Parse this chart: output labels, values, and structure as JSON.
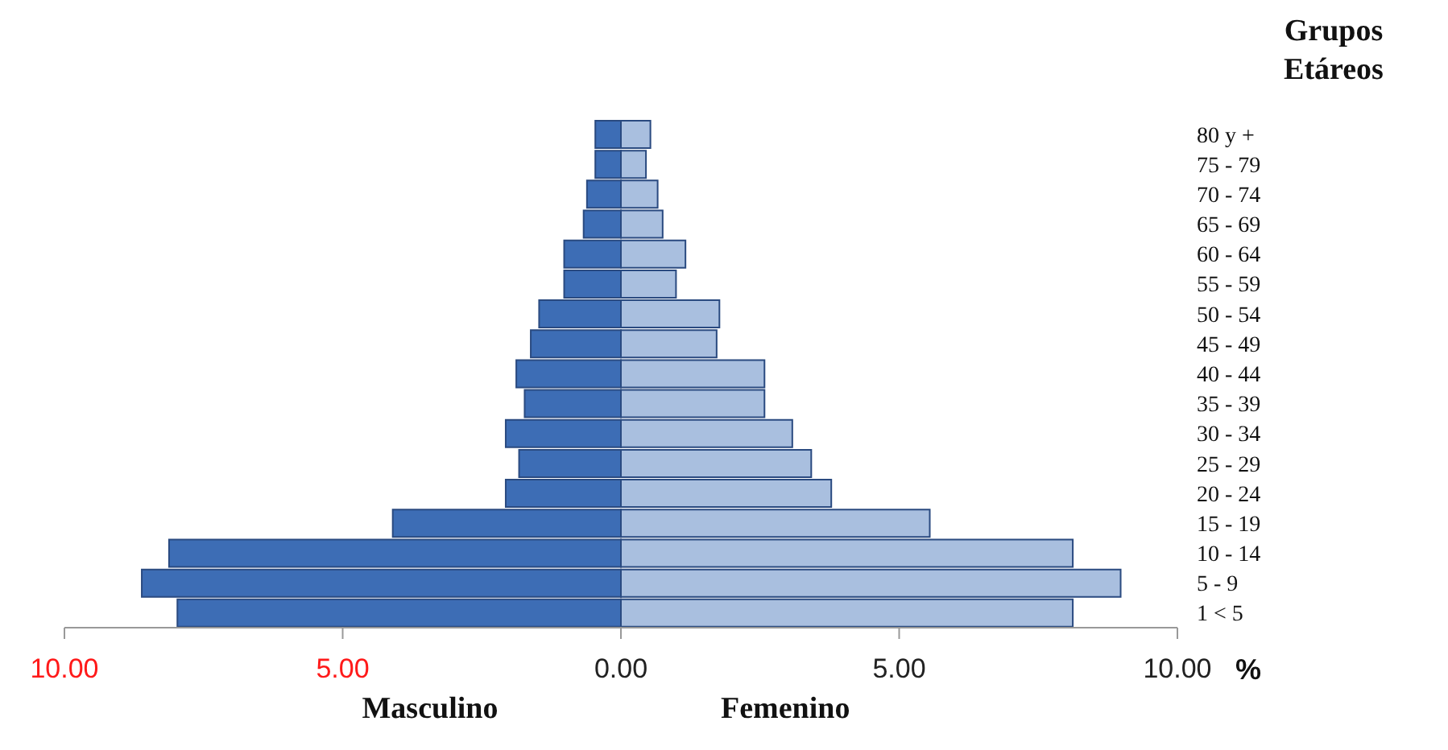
{
  "chart_data": {
    "type": "bar",
    "orientation": "horizontal",
    "stacked": true,
    "ylabel": "Grupos Etáreos",
    "xlabel": "%",
    "categories": [
      "80 y +",
      "75 - 79",
      "70 - 74",
      "65 - 69",
      "60 - 64",
      "55 - 59",
      "50 - 54",
      "45 - 49",
      "40 - 44",
      "35 - 39",
      "30 - 34",
      "25 - 29",
      "20 - 24",
      "15 - 19",
      "10 - 14",
      "5 - 9",
      "1 < 5"
    ],
    "series": [
      {
        "name": "Masculino",
        "color": "#3d6db5",
        "values": [
          -0.46,
          -0.46,
          -0.61,
          -0.67,
          -1.02,
          -1.02,
          -1.47,
          -1.62,
          -1.88,
          -1.73,
          -2.07,
          -1.83,
          -2.07,
          -4.1,
          -8.12,
          -8.61,
          -7.97
        ]
      },
      {
        "name": "Femenino",
        "color": "#a9bfdf",
        "values": [
          0.53,
          0.45,
          0.66,
          0.75,
          1.16,
          0.99,
          1.77,
          1.72,
          2.58,
          2.58,
          3.08,
          3.42,
          3.78,
          5.55,
          8.12,
          8.98,
          8.12
        ]
      }
    ],
    "xlim": [
      -10,
      10
    ],
    "xticks": [
      {
        "value": -10,
        "label": "10.00"
      },
      {
        "value": -5,
        "label": "5.00"
      },
      {
        "value": 0,
        "label": "0.00"
      },
      {
        "value": 5,
        "label": "5.00"
      },
      {
        "value": 10,
        "label": "10.00"
      }
    ],
    "grid": false,
    "legend": "bottom"
  }
}
